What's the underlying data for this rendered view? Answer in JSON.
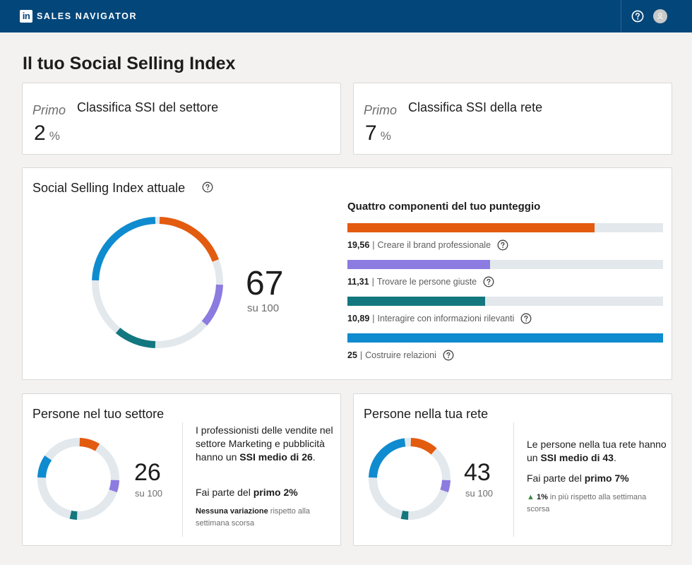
{
  "header": {
    "logo": "in",
    "brand": "SALES NAVIGATOR"
  },
  "page": {
    "title": "Il tuo Social Selling Index"
  },
  "rank_cards": [
    {
      "primo": "Primo",
      "title": "Classifica SSI del settore",
      "value": "2",
      "unit": "%"
    },
    {
      "primo": "Primo",
      "title": "Classifica SSI della rete",
      "value": "7",
      "unit": "%"
    }
  ],
  "ssi": {
    "title": "Social Selling Index attuale",
    "score": "67",
    "score_sub": "su 100",
    "components_title": "Quattro componenti del tuo punteggio",
    "components": [
      {
        "value": "19,56",
        "label": "Creare il brand professionale",
        "score": 19.56,
        "max": 25,
        "color": "#e35b0e"
      },
      {
        "value": "11,31",
        "label": "Trovare le persone giuste",
        "score": 11.31,
        "max": 25,
        "color": "#8c7be0"
      },
      {
        "value": "10,89",
        "label": "Interagire con informazioni rilevanti",
        "score": 10.89,
        "max": 25,
        "color": "#13777f"
      },
      {
        "value": "25",
        "label": "Costruire relazioni",
        "score": 25,
        "max": 25,
        "color": "#0f8bcf"
      }
    ]
  },
  "industry": {
    "title": "Persone nel tuo settore",
    "score": "26",
    "score_sub": "su 100",
    "components": [
      8.5,
      5,
      3,
      9.5
    ],
    "desc_pre": "I professionisti delle vendite nel settore Marketing e pubblicità hanno un ",
    "desc_bold": "SSI medio di 26",
    "desc_post": ".",
    "rank_pre": "Fai parte del ",
    "rank_bold": "primo 2%",
    "change_bold": "Nessuna variazione",
    "change_rest": " rispetto alla settimana scorsa"
  },
  "network": {
    "title": "Persone nella tua rete",
    "score": "43",
    "score_sub": "su 100",
    "components": [
      11.5,
      5,
      3,
      23.5
    ],
    "desc_pre": "Le persone nella tua rete hanno un ",
    "desc_bold": "SSI medio di 43",
    "desc_post": ".",
    "rank_pre": "Fai parte del ",
    "rank_bold": "primo 7%",
    "change_arrow": "▲",
    "change_bold": "1%",
    "change_rest": " in più rispetto alla settimana scorsa"
  },
  "colors": {
    "brand": "#e35b0e",
    "people": "#8c7be0",
    "insights": "#13777f",
    "relationships": "#0f8bcf",
    "track": "#e2e8ec",
    "header": "#03467a"
  },
  "icons": {
    "help": "help-icon",
    "info": "info-icon",
    "avatar": "user-avatar"
  }
}
